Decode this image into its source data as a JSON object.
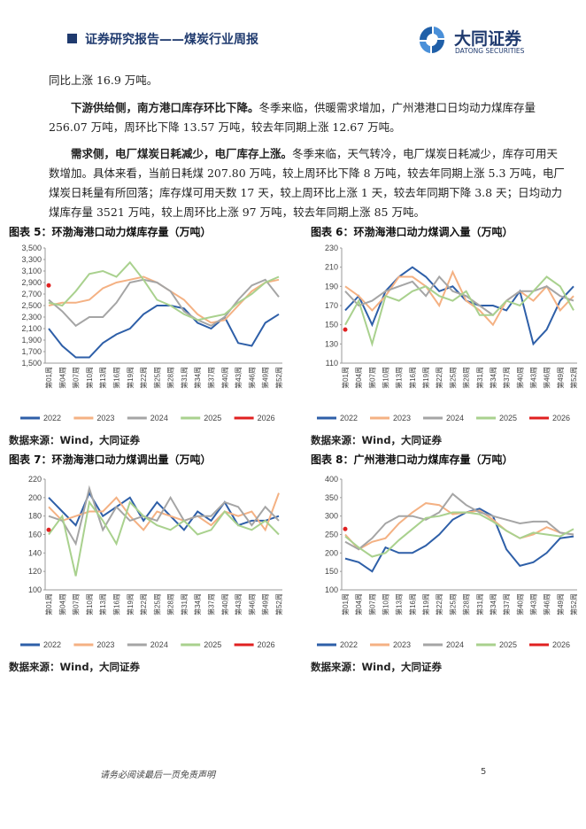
{
  "header": {
    "title": "证券研究报告——煤炭行业周报",
    "logo_name": "大同证券",
    "logo_sub": "DATONG SECURITIES"
  },
  "paragraphs": [
    {
      "text": "同比上涨 16.9 万吨。"
    },
    {
      "bold": "下游供给侧，南方港口库存环比下降。",
      "text": "冬季来临，供暖需求增加，广州港港口日均动力煤库存量 256.07 万吨，周环比下降 13.57 万吨，较去年同期上涨 12.67 万吨。"
    },
    {
      "bold": "需求侧，电厂煤炭日耗减少，电厂库存上涨。",
      "text": "冬季来临，天气转冷，电厂煤炭日耗减少，库存可用天数增加。具体来看，当前日耗煤 207.80 万吨，较上周环比下降 8 万吨，较去年同期上涨 5.3 万吨，电厂煤炭日耗量有所回落；库存煤可用天数 17 天，较上周环比上涨 1 天，较去年同期下降 3.8 天；日均动力煤库存量 3521 万吨，较上周环比上涨 97 万吨，较去年同期上涨 85 万吨。"
    }
  ],
  "chart_data": [
    {
      "type": "line",
      "title": "图表 5：环渤海港口动力煤库存量（万吨）",
      "source": "数据来源：Wind，大同证券",
      "grid": false,
      "categories": [
        "第01周",
        "第04周",
        "第07周",
        "第10周",
        "第13周",
        "第16周",
        "第19周",
        "第22周",
        "第25周",
        "第28周",
        "第31周",
        "第34周",
        "第37周",
        "第40周",
        "第43周",
        "第46周",
        "第49周",
        "第52周"
      ],
      "ylim": [
        1500,
        3500
      ],
      "yticks": [
        {
          "value": 1500,
          "label": "1,500"
        },
        {
          "value": 1700,
          "label": "1,700"
        },
        {
          "value": 1900,
          "label": "1,900"
        },
        {
          "value": 2100,
          "label": "2,100"
        },
        {
          "value": 2300,
          "label": "2,300"
        },
        {
          "value": 2500,
          "label": "2,500"
        },
        {
          "value": 2700,
          "label": "2,700"
        },
        {
          "value": 2900,
          "label": "2,900"
        },
        {
          "value": 3100,
          "label": "3,100"
        },
        {
          "value": 3300,
          "label": "3,300"
        },
        {
          "value": 3500,
          "label": "3,500"
        }
      ],
      "series": [
        {
          "name": "2022",
          "color": "#2e5fa8",
          "values": [
            2100,
            1800,
            1600,
            1600,
            1850,
            2000,
            2100,
            2350,
            2500,
            2500,
            2450,
            2200,
            2100,
            2300,
            1850,
            1800,
            2200,
            2350
          ]
        },
        {
          "name": "2023",
          "color": "#f4b183",
          "values": [
            2500,
            2550,
            2550,
            2600,
            2800,
            2900,
            2950,
            3000,
            2900,
            2750,
            2600,
            2350,
            2200,
            2250,
            2500,
            2750,
            2900,
            2950
          ]
        },
        {
          "name": "2024",
          "color": "#a5a5a5",
          "values": [
            2600,
            2400,
            2150,
            2300,
            2300,
            2550,
            2900,
            2950,
            2900,
            2750,
            2400,
            2250,
            2150,
            2300,
            2600,
            2850,
            2950,
            2650
          ]
        },
        {
          "name": "2025",
          "color": "#a9d18e",
          "values": [
            2550,
            2500,
            2750,
            3050,
            3100,
            3000,
            3250,
            2950,
            2600,
            2500,
            2350,
            2250,
            2300,
            2350,
            2550,
            2700,
            2900,
            3000
          ]
        },
        {
          "name": "2026",
          "color": "#e02020",
          "values": [
            2850,
            null,
            null,
            null,
            null,
            null,
            null,
            null,
            null,
            null,
            null,
            null,
            null,
            null,
            null,
            null,
            null,
            null
          ]
        }
      ]
    },
    {
      "type": "line",
      "title": "图表 6：环渤海港口动力煤调入量（万吨）",
      "source": "数据来源：Wind，大同证券",
      "grid": false,
      "categories": [
        "第01周",
        "第04周",
        "第07周",
        "第10周",
        "第13周",
        "第16周",
        "第19周",
        "第22周",
        "第25周",
        "第28周",
        "第31周",
        "第34周",
        "第37周",
        "第40周",
        "第43周",
        "第46周",
        "第49周",
        "第52周"
      ],
      "ylim": [
        110,
        230
      ],
      "yticks": [
        110,
        130,
        150,
        170,
        190,
        210,
        230
      ],
      "series": [
        {
          "name": "2022",
          "color": "#2e5fa8",
          "values": [
            165,
            180,
            150,
            185,
            200,
            210,
            200,
            185,
            190,
            175,
            170,
            170,
            165,
            185,
            130,
            145,
            175,
            190
          ]
        },
        {
          "name": "2023",
          "color": "#f4b183",
          "values": [
            190,
            180,
            165,
            180,
            200,
            200,
            190,
            170,
            205,
            175,
            165,
            150,
            175,
            185,
            175,
            190,
            165,
            180
          ]
        },
        {
          "name": "2024",
          "color": "#a5a5a5",
          "values": [
            185,
            170,
            175,
            185,
            190,
            195,
            180,
            200,
            185,
            180,
            170,
            160,
            175,
            185,
            185,
            190,
            180,
            175
          ]
        },
        {
          "name": "2025",
          "color": "#a9d18e",
          "values": [
            150,
            175,
            130,
            180,
            175,
            185,
            190,
            180,
            175,
            185,
            160,
            160,
            175,
            170,
            185,
            200,
            190,
            165
          ]
        },
        {
          "name": "2026",
          "color": "#e02020",
          "values": [
            145,
            null,
            null,
            null,
            null,
            null,
            null,
            null,
            null,
            null,
            null,
            null,
            null,
            null,
            null,
            null,
            null,
            null
          ]
        }
      ]
    },
    {
      "type": "line",
      "title": "图表 7：环渤海港口动力煤调出量（万吨）",
      "source": "数据来源：Wind，大同证券",
      "grid": false,
      "categories": [
        "第01周",
        "第04周",
        "第07周",
        "第10周",
        "第13周",
        "第16周",
        "第19周",
        "第22周",
        "第25周",
        "第28周",
        "第31周",
        "第34周",
        "第37周",
        "第40周",
        "第43周",
        "第46周",
        "第49周",
        "第52周"
      ],
      "ylim": [
        100,
        220
      ],
      "yticks": [
        100,
        120,
        140,
        160,
        180,
        200,
        220
      ],
      "series": [
        {
          "name": "2022",
          "color": "#2e5fa8",
          "values": [
            200,
            185,
            170,
            205,
            180,
            190,
            200,
            175,
            195,
            180,
            165,
            185,
            175,
            195,
            170,
            175,
            175,
            180
          ]
        },
        {
          "name": "2023",
          "color": "#f4b183",
          "values": [
            190,
            175,
            180,
            185,
            185,
            200,
            180,
            165,
            185,
            180,
            175,
            180,
            170,
            185,
            180,
            185,
            165,
            205
          ]
        },
        {
          "name": "2024",
          "color": "#a5a5a5",
          "values": [
            180,
            175,
            150,
            210,
            165,
            190,
            175,
            180,
            175,
            200,
            175,
            180,
            180,
            195,
            190,
            170,
            190,
            175
          ]
        },
        {
          "name": "2025",
          "color": "#a9d18e",
          "values": [
            160,
            180,
            115,
            195,
            175,
            150,
            195,
            180,
            170,
            165,
            175,
            160,
            165,
            185,
            170,
            165,
            175,
            160
          ]
        },
        {
          "name": "2026",
          "color": "#e02020",
          "values": [
            165,
            null,
            null,
            null,
            null,
            null,
            null,
            null,
            null,
            null,
            null,
            null,
            null,
            null,
            null,
            null,
            null,
            null
          ]
        }
      ]
    },
    {
      "type": "line",
      "title": "图表 8：广州港港口动力煤库存量（万吨）",
      "source": "数据来源：Wind，大同证券",
      "grid": false,
      "categories": [
        "第01周",
        "第04周",
        "第07周",
        "第10周",
        "第13周",
        "第16周",
        "第19周",
        "第22周",
        "第25周",
        "第28周",
        "第31周",
        "第34周",
        "第37周",
        "第40周",
        "第43周",
        "第46周",
        "第49周",
        "第52周"
      ],
      "ylim": [
        100,
        400
      ],
      "yticks": [
        100,
        150,
        200,
        250,
        300,
        350,
        400
      ],
      "series": [
        {
          "name": "2022",
          "color": "#2e5fa8",
          "values": [
            185,
            175,
            150,
            215,
            200,
            200,
            220,
            250,
            290,
            310,
            320,
            300,
            210,
            165,
            175,
            200,
            240,
            245
          ]
        },
        {
          "name": "2023",
          "color": "#f4b183",
          "values": [
            250,
            210,
            230,
            240,
            280,
            310,
            335,
            330,
            305,
            310,
            315,
            290,
            260,
            240,
            250,
            270,
            255,
            250
          ]
        },
        {
          "name": "2024",
          "color": "#a5a5a5",
          "values": [
            230,
            210,
            240,
            280,
            300,
            300,
            290,
            310,
            360,
            330,
            310,
            300,
            290,
            280,
            285,
            285,
            255,
            250
          ]
        },
        {
          "name": "2025",
          "color": "#a9d18e",
          "values": [
            245,
            215,
            190,
            200,
            235,
            265,
            295,
            300,
            310,
            310,
            305,
            285,
            260,
            240,
            255,
            250,
            245,
            265
          ]
        },
        {
          "name": "2026",
          "color": "#e02020",
          "values": [
            265,
            null,
            null,
            null,
            null,
            null,
            null,
            null,
            null,
            null,
            null,
            null,
            null,
            null,
            null,
            null,
            null,
            null
          ]
        }
      ]
    }
  ],
  "footer": {
    "disclaimer": "请务必阅读最后一页免责声明",
    "page": "5"
  }
}
